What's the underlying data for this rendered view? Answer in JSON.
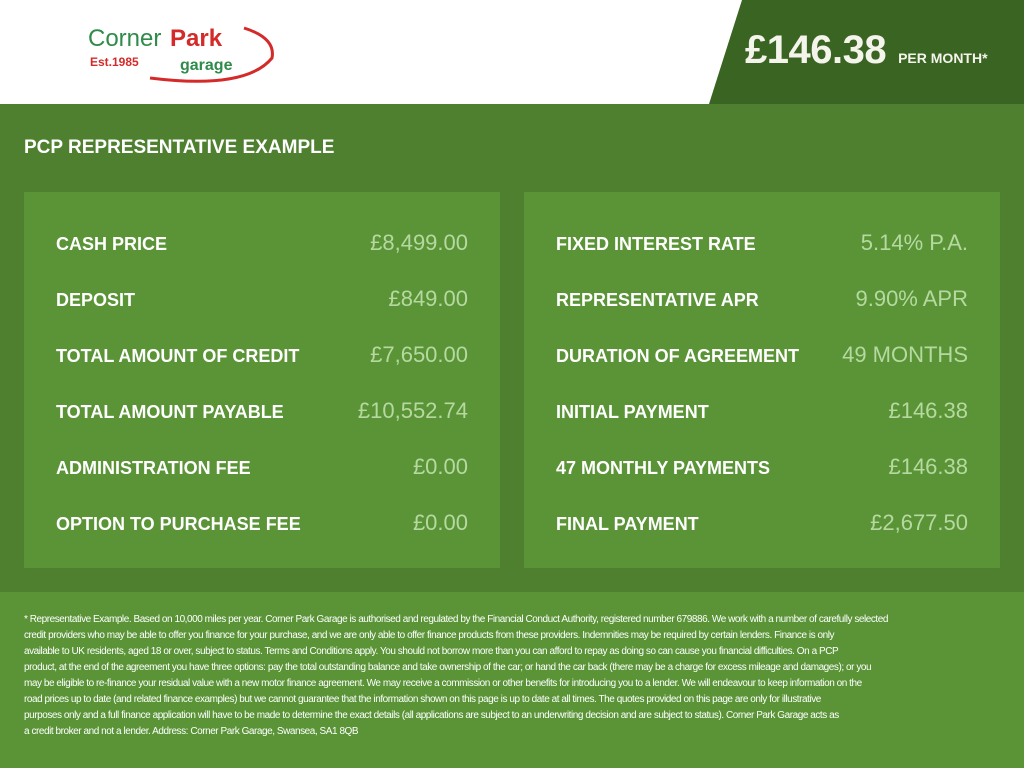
{
  "header": {
    "logo": {
      "text_corner": "Corner",
      "text_park": "Park",
      "est": "Est.1985",
      "garage": "garage"
    },
    "price": "£146.38",
    "price_suffix": "PER MONTH*"
  },
  "title": "PCP REPRESENTATIVE EXAMPLE",
  "left_panel": [
    {
      "label": "CASH PRICE",
      "value": "£8,499.00"
    },
    {
      "label": "DEPOSIT",
      "value": "£849.00"
    },
    {
      "label": "TOTAL AMOUNT OF CREDIT",
      "value": "£7,650.00"
    },
    {
      "label": "TOTAL AMOUNT PAYABLE",
      "value": "£10,552.74"
    },
    {
      "label": "ADMINISTRATION FEE",
      "value": "£0.00"
    },
    {
      "label": "OPTION TO PURCHASE FEE",
      "value": "£0.00"
    }
  ],
  "right_panel": [
    {
      "label": "FIXED INTEREST RATE",
      "value": "5.14% P.A."
    },
    {
      "label": "REPRESENTATIVE APR",
      "value": "9.90% APR"
    },
    {
      "label": "DURATION OF AGREEMENT",
      "value": "49 MONTHS"
    },
    {
      "label": "INITIAL PAYMENT",
      "value": "£146.38"
    },
    {
      "label": "47 MONTHLY PAYMENTS",
      "value": "£146.38"
    },
    {
      "label": "FINAL PAYMENT",
      "value": "£2,677.50"
    }
  ],
  "footer_lines": [
    "* Representative Example. Based on 10,000 miles per year. Corner Park Garage is authorised and regulated by the Financial Conduct Authority, registered number 679886. We work with a number of carefully selected",
    "credit providers who may be able to offer you finance for your purchase, and we are only able to offer finance products from these providers. Indemnities may be required by certain lenders. Finance is only",
    "available to UK residents, aged 18 or over, subject to status. Terms and Conditions apply. You should not borrow more than you can afford to repay as doing so can cause you financial difficulties. On a PCP",
    "product, at the end of the agreement you have three options: pay the total outstanding balance and take ownership of the car; or hand the car back (there may be a charge for excess mileage and damages); or you",
    "may be eligible to re-finance your residual value with a new motor finance agreement. We may receive a commission or other benefits for introducing you to a lender. We will endeavour to keep information on the",
    "road prices up to date (and related finance examples) but we cannot guarantee that the information shown on this page is up to date at all times. The quotes provided on this page are only for illustrative",
    "purposes only and a full finance application will have to be made to determine the exact details (all applications are subject to an underwriting decision and are subject to status). Corner Park Garage acts as",
    "a credit broker and not a lender. Address: Corner Park Garage, Swansea, SA1 8QB"
  ],
  "colors": {
    "header_dark": "#3a6421",
    "background": "#4e8030",
    "panel": "#5a9437",
    "value": "#b6d9a0",
    "logo_green": "#2e8b4a",
    "logo_red": "#d42a2a"
  }
}
